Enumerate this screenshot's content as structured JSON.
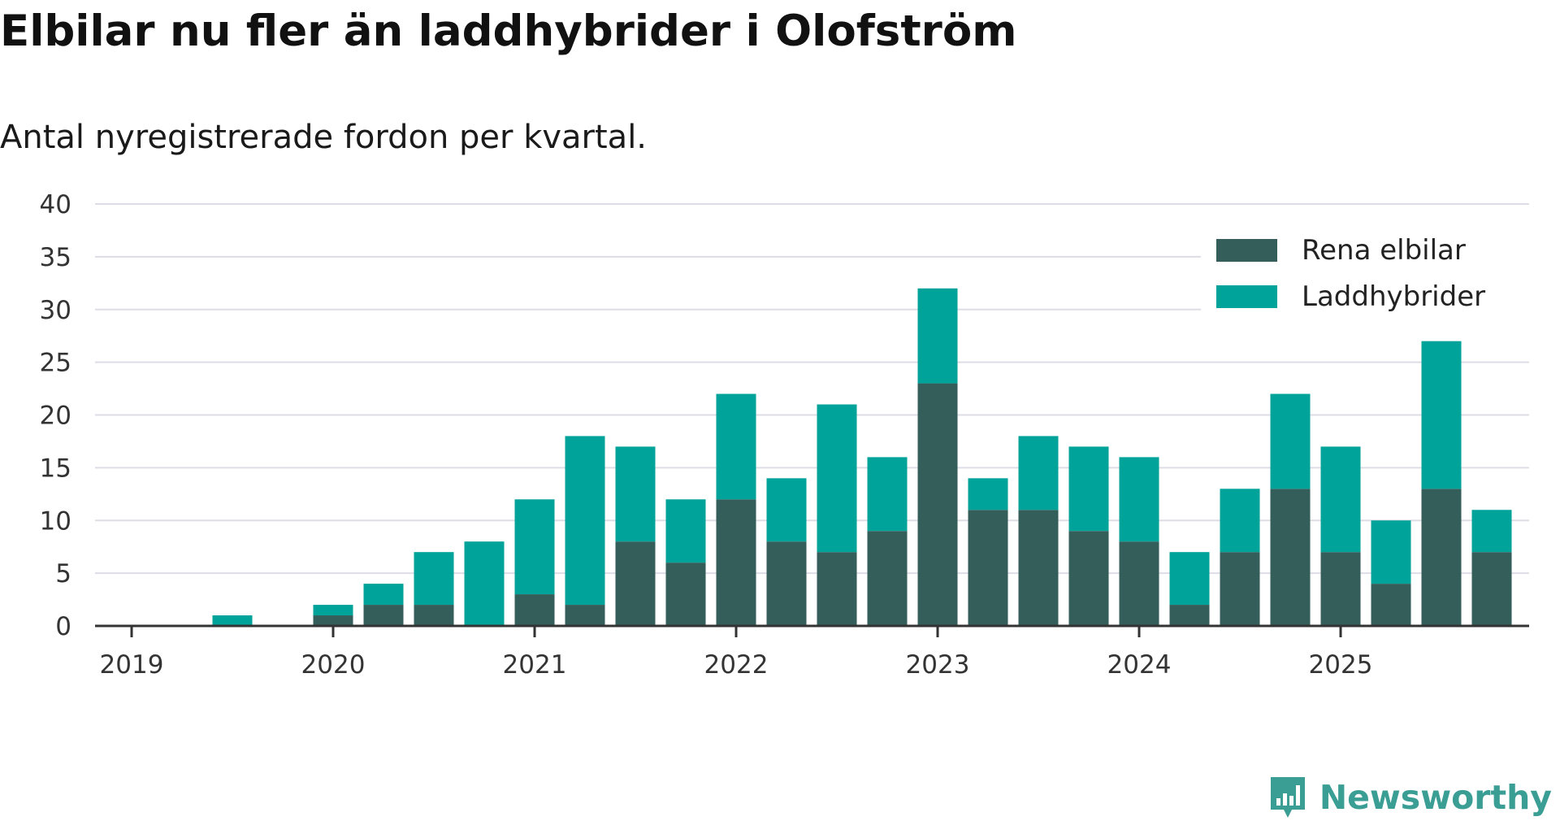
{
  "title": "Elbilar nu fler än laddhybrider i Olofström",
  "subtitle": "Antal nyregistrerade fordon per kvartal.",
  "brand": {
    "name": "Newsworthy",
    "icon": "bar-chart-speech-bubble-icon"
  },
  "colors": {
    "electric": "#335e5a",
    "hybrid": "#00a39a",
    "grid": "#dddde6",
    "axis": "#333333",
    "brand": "#3a9e94"
  },
  "chart_data": {
    "type": "bar",
    "stacked": true,
    "title": "Elbilar nu fler än laddhybrider i Olofström",
    "subtitle": "Antal nyregistrerade fordon per kvartal.",
    "xlabel": "",
    "ylabel": "",
    "ylim": [
      0,
      40
    ],
    "yticks": [
      0,
      5,
      10,
      15,
      20,
      25,
      30,
      35,
      40
    ],
    "xticks": [
      "2019",
      "2020",
      "2021",
      "2022",
      "2023",
      "2024",
      "2025"
    ],
    "grid": true,
    "legend_position": "top-right",
    "categories": [
      "2019 Q1",
      "2019 Q2",
      "2019 Q3",
      "2019 Q4",
      "2020 Q1",
      "2020 Q2",
      "2020 Q3",
      "2020 Q4",
      "2021 Q1",
      "2021 Q2",
      "2021 Q3",
      "2021 Q4",
      "2022 Q1",
      "2022 Q2",
      "2022 Q3",
      "2022 Q4",
      "2023 Q1",
      "2023 Q2",
      "2023 Q3",
      "2023 Q4",
      "2024 Q1",
      "2024 Q2",
      "2024 Q3",
      "2024 Q4",
      "2025 Q1",
      "2025 Q2",
      "2025 Q3"
    ],
    "series": [
      {
        "name": "Rena elbilar",
        "values": [
          0,
          0,
          0,
          1,
          2,
          2,
          0,
          3,
          2,
          8,
          6,
          12,
          8,
          7,
          9,
          23,
          11,
          11,
          9,
          8,
          2,
          7,
          13,
          7,
          4,
          13,
          7
        ]
      },
      {
        "name": "Laddhybrider",
        "values": [
          0,
          1,
          0,
          1,
          2,
          5,
          8,
          9,
          16,
          9,
          6,
          10,
          6,
          14,
          7,
          9,
          3,
          7,
          8,
          8,
          5,
          6,
          9,
          10,
          6,
          14,
          4
        ]
      }
    ]
  }
}
